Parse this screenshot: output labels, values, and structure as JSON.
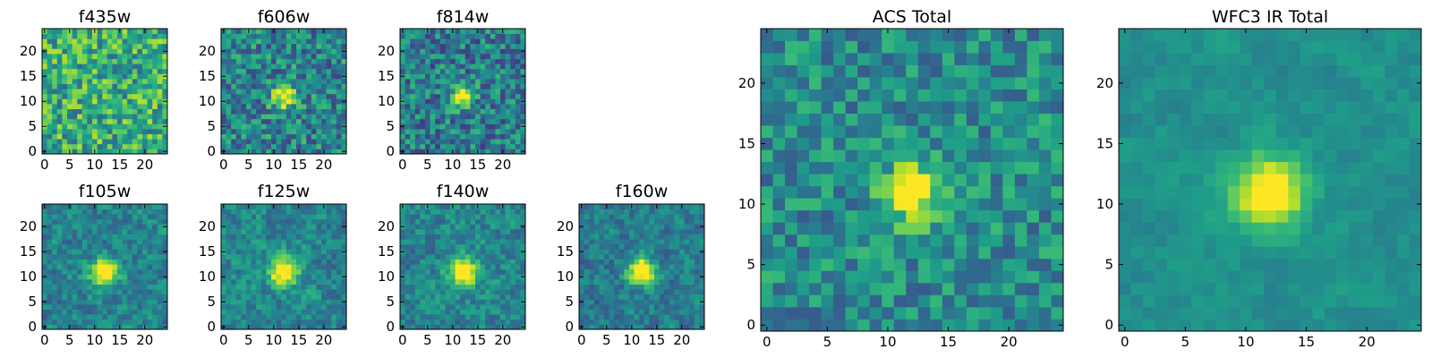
{
  "chart_data": [
    {
      "type": "heatmap",
      "title": "f435w",
      "image_size": 25,
      "xticks": [
        0,
        5,
        10,
        15,
        20
      ],
      "yticks": [
        0,
        5,
        10,
        15,
        20
      ],
      "source": {
        "peak": 0.0,
        "sigma": 2.0,
        "noise": 0.55,
        "base": 0.62,
        "smooth": 0,
        "seed": 11
      }
    },
    {
      "type": "heatmap",
      "title": "f606w",
      "image_size": 25,
      "xticks": [
        0,
        5,
        10,
        15,
        20
      ],
      "yticks": [
        0,
        5,
        10,
        15,
        20
      ],
      "source": {
        "peak": 0.55,
        "sigma": 1.6,
        "noise": 0.5,
        "base": 0.45,
        "smooth": 0,
        "seed": 23
      }
    },
    {
      "type": "heatmap",
      "title": "f814w",
      "image_size": 25,
      "xticks": [
        0,
        5,
        10,
        15,
        20
      ],
      "yticks": [
        0,
        5,
        10,
        15,
        20
      ],
      "source": {
        "peak": 0.55,
        "sigma": 1.5,
        "noise": 0.5,
        "base": 0.42,
        "smooth": 0,
        "seed": 37
      }
    },
    {
      "type": "heatmap",
      "title": "f105w",
      "image_size": 25,
      "xticks": [
        0,
        5,
        10,
        15,
        20
      ],
      "yticks": [
        0,
        5,
        10,
        15,
        20
      ],
      "source": {
        "peak": 0.6,
        "sigma": 1.9,
        "noise": 0.42,
        "base": 0.44,
        "smooth": 0.35,
        "seed": 41
      }
    },
    {
      "type": "heatmap",
      "title": "f125w",
      "image_size": 25,
      "xticks": [
        0,
        5,
        10,
        15,
        20
      ],
      "yticks": [
        0,
        5,
        10,
        15,
        20
      ],
      "source": {
        "peak": 0.6,
        "sigma": 1.9,
        "noise": 0.42,
        "base": 0.46,
        "smooth": 0.35,
        "seed": 53
      }
    },
    {
      "type": "heatmap",
      "title": "f140w",
      "image_size": 25,
      "xticks": [
        0,
        5,
        10,
        15,
        20
      ],
      "yticks": [
        0,
        5,
        10,
        15,
        20
      ],
      "source": {
        "peak": 0.6,
        "sigma": 1.9,
        "noise": 0.42,
        "base": 0.46,
        "smooth": 0.35,
        "seed": 67
      }
    },
    {
      "type": "heatmap",
      "title": "f160w",
      "image_size": 25,
      "xticks": [
        0,
        5,
        10,
        15,
        20
      ],
      "yticks": [
        0,
        5,
        10,
        15,
        20
      ],
      "source": {
        "peak": 0.65,
        "sigma": 1.8,
        "noise": 0.4,
        "base": 0.42,
        "smooth": 0.35,
        "seed": 79
      }
    },
    {
      "type": "heatmap",
      "title": "ACS Total",
      "image_size": 25,
      "xticks": [
        0,
        5,
        10,
        15,
        20
      ],
      "yticks": [
        0,
        5,
        10,
        15,
        20
      ],
      "source": {
        "peak": 0.55,
        "sigma": 1.6,
        "noise": 0.4,
        "base": 0.48,
        "smooth": 0,
        "seed": 97
      }
    },
    {
      "type": "heatmap",
      "title": "WFC3 IR Total",
      "image_size": 25,
      "xticks": [
        0,
        5,
        10,
        15,
        20
      ],
      "yticks": [
        0,
        5,
        10,
        15,
        20
      ],
      "source": {
        "peak": 0.6,
        "sigma": 1.9,
        "noise": 0.22,
        "base": 0.5,
        "smooth": 0.55,
        "seed": 101
      }
    }
  ],
  "colormap": [
    "#440154",
    "#482878",
    "#3e4a89",
    "#31688e",
    "#26828e",
    "#1f9e89",
    "#35b779",
    "#6ece58",
    "#b5de2b",
    "#fde725"
  ],
  "source_position": [
    12,
    11
  ]
}
